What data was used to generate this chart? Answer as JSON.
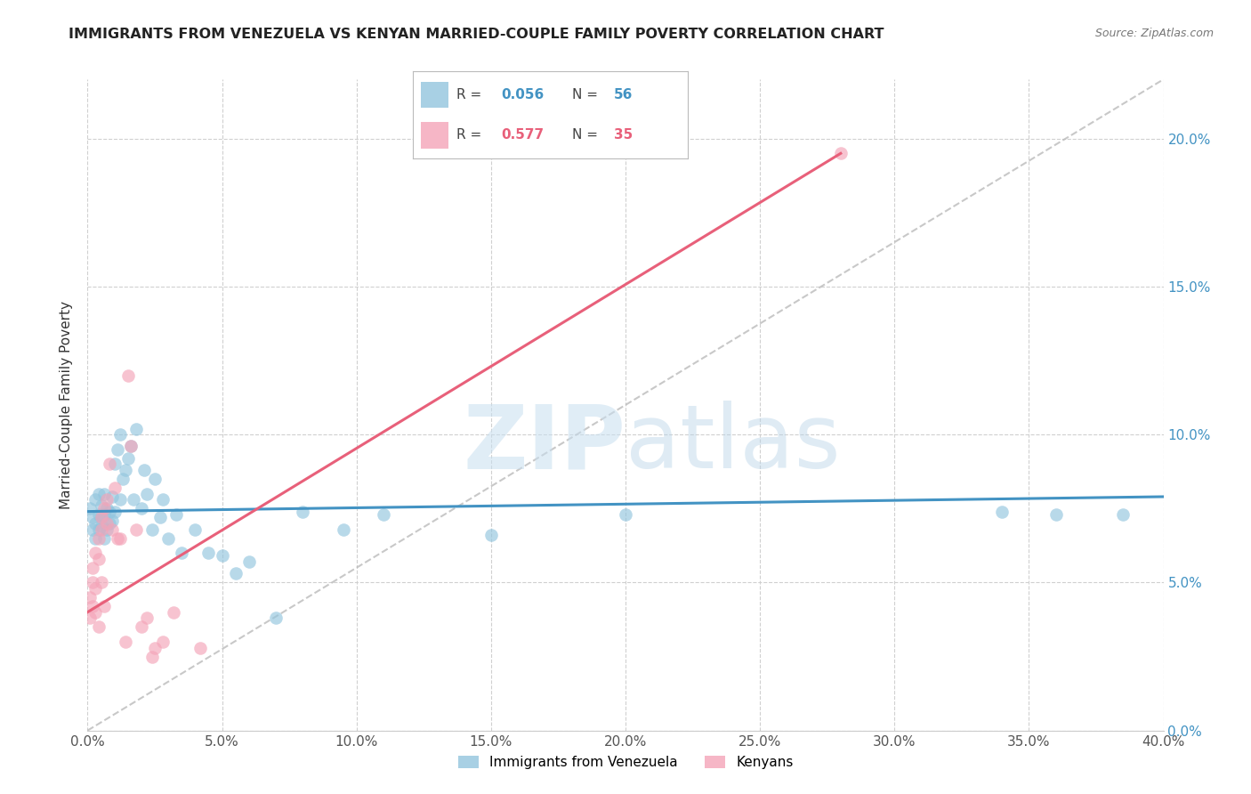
{
  "title": "IMMIGRANTS FROM VENEZUELA VS KENYAN MARRIED-COUPLE FAMILY POVERTY CORRELATION CHART",
  "source": "Source: ZipAtlas.com",
  "ylabel": "Married-Couple Family Poverty",
  "legend_label1": "Immigrants from Venezuela",
  "legend_label2": "Kenyans",
  "r1": 0.056,
  "n1": 56,
  "r2": 0.577,
  "n2": 35,
  "xlim": [
    0,
    0.4
  ],
  "ylim": [
    0,
    0.22
  ],
  "xticks": [
    0.0,
    0.05,
    0.1,
    0.15,
    0.2,
    0.25,
    0.3,
    0.35,
    0.4
  ],
  "yticks": [
    0.0,
    0.05,
    0.1,
    0.15,
    0.2
  ],
  "color_blue": "#92c5de",
  "color_pink": "#f4a4b8",
  "line_blue": "#4393c3",
  "line_pink": "#e8607a",
  "watermark_zip": "ZIP",
  "watermark_atlas": "atlas",
  "blue_dots_x": [
    0.001,
    0.002,
    0.002,
    0.003,
    0.003,
    0.003,
    0.004,
    0.004,
    0.004,
    0.005,
    0.005,
    0.005,
    0.006,
    0.006,
    0.006,
    0.007,
    0.007,
    0.008,
    0.008,
    0.009,
    0.009,
    0.01,
    0.01,
    0.011,
    0.012,
    0.012,
    0.013,
    0.014,
    0.015,
    0.016,
    0.017,
    0.018,
    0.02,
    0.021,
    0.022,
    0.024,
    0.025,
    0.027,
    0.028,
    0.03,
    0.033,
    0.035,
    0.04,
    0.045,
    0.05,
    0.055,
    0.06,
    0.07,
    0.08,
    0.095,
    0.11,
    0.15,
    0.2,
    0.34,
    0.36,
    0.385
  ],
  "blue_dots_y": [
    0.075,
    0.068,
    0.072,
    0.07,
    0.065,
    0.078,
    0.068,
    0.073,
    0.08,
    0.072,
    0.076,
    0.069,
    0.065,
    0.073,
    0.08,
    0.068,
    0.075,
    0.07,
    0.074,
    0.079,
    0.071,
    0.09,
    0.074,
    0.095,
    0.1,
    0.078,
    0.085,
    0.088,
    0.092,
    0.096,
    0.078,
    0.102,
    0.075,
    0.088,
    0.08,
    0.068,
    0.085,
    0.072,
    0.078,
    0.065,
    0.073,
    0.06,
    0.068,
    0.06,
    0.059,
    0.053,
    0.057,
    0.038,
    0.074,
    0.068,
    0.073,
    0.066,
    0.073,
    0.074,
    0.073,
    0.073
  ],
  "pink_dots_x": [
    0.001,
    0.001,
    0.002,
    0.002,
    0.002,
    0.003,
    0.003,
    0.003,
    0.004,
    0.004,
    0.004,
    0.005,
    0.005,
    0.005,
    0.006,
    0.006,
    0.007,
    0.007,
    0.008,
    0.009,
    0.01,
    0.011,
    0.012,
    0.014,
    0.015,
    0.016,
    0.018,
    0.02,
    0.022,
    0.024,
    0.025,
    0.028,
    0.032,
    0.042,
    0.28
  ],
  "pink_dots_y": [
    0.045,
    0.038,
    0.05,
    0.042,
    0.055,
    0.048,
    0.04,
    0.06,
    0.065,
    0.058,
    0.035,
    0.072,
    0.068,
    0.05,
    0.075,
    0.042,
    0.07,
    0.078,
    0.09,
    0.068,
    0.082,
    0.065,
    0.065,
    0.03,
    0.12,
    0.096,
    0.068,
    0.035,
    0.038,
    0.025,
    0.028,
    0.03,
    0.04,
    0.028,
    0.195
  ],
  "blue_line_x": [
    0.0,
    0.4
  ],
  "blue_line_y": [
    0.074,
    0.079
  ],
  "pink_line_x": [
    0.0,
    0.28
  ],
  "pink_line_y": [
    0.04,
    0.195
  ]
}
